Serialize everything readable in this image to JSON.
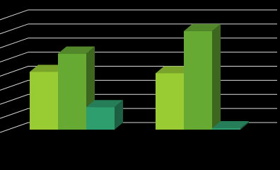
{
  "chart_data": {
    "type": "bar3d",
    "categories": [
      null,
      null
    ],
    "series": [
      {
        "color": "#99cc33",
        "values": [
          4.1,
          4.0
        ]
      },
      {
        "color": "#66aa33",
        "values": [
          5.4,
          7.0
        ]
      },
      {
        "color": "#2e9e6e",
        "values": [
          1.6,
          0.1
        ]
      }
    ],
    "ylim": [
      0,
      8.5
    ],
    "yticks": [
      0,
      1,
      2,
      3,
      4,
      5,
      6,
      7,
      8
    ],
    "grid": true
  }
}
